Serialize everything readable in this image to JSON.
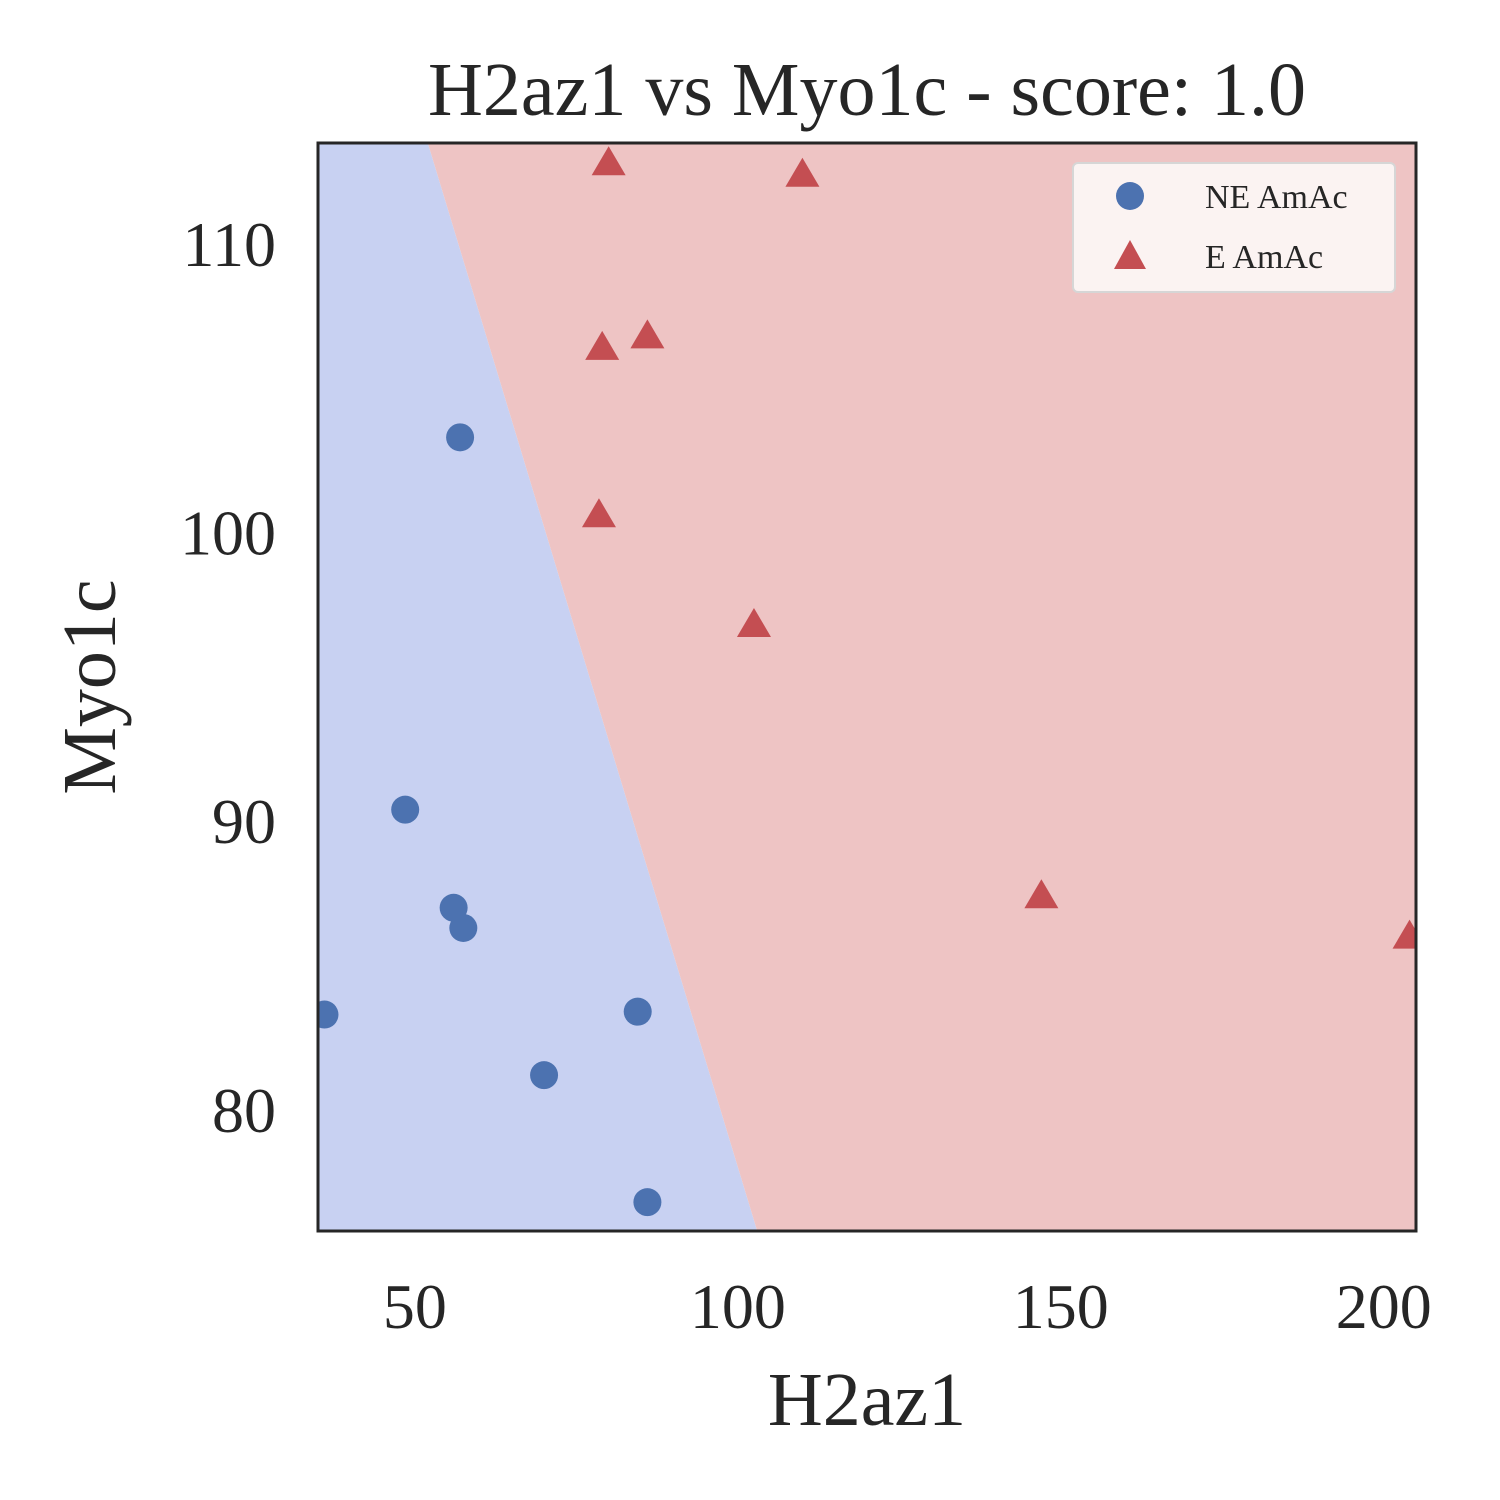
{
  "chart_data": {
    "type": "scatter",
    "title": "H2az1 vs Myo1c - score: 1.0",
    "xlabel": "H2az1",
    "ylabel": "Myo1c",
    "xlim": [
      35,
      205
    ],
    "ylim": [
      75.8,
      113.5
    ],
    "xticks": [
      50,
      100,
      150,
      200
    ],
    "yticks": [
      80,
      90,
      100,
      110
    ],
    "grid": false,
    "legend_position": "top-right",
    "decision_boundary": {
      "line": [
        [
          52,
          113.5
        ],
        [
          103,
          75.8
        ]
      ],
      "left_region_class": "NE AmAc",
      "right_region_class": "E AmAc",
      "left_color": "#c8d1f2",
      "right_color": "#eec4c4"
    },
    "series": [
      {
        "name": "NE AmAc",
        "marker": "circle",
        "color": "#4c72b0",
        "points": [
          {
            "x": 57,
            "y": 103.3
          },
          {
            "x": 48.5,
            "y": 90.4
          },
          {
            "x": 56,
            "y": 87.0
          },
          {
            "x": 57.5,
            "y": 86.3
          },
          {
            "x": 36,
            "y": 83.3
          },
          {
            "x": 84.5,
            "y": 83.4
          },
          {
            "x": 70,
            "y": 81.2
          },
          {
            "x": 86,
            "y": 76.8
          }
        ]
      },
      {
        "name": "E AmAc",
        "marker": "triangle",
        "color": "#c44e52",
        "points": [
          {
            "x": 80,
            "y": 112.8
          },
          {
            "x": 110,
            "y": 112.4
          },
          {
            "x": 79,
            "y": 106.4
          },
          {
            "x": 86,
            "y": 106.8
          },
          {
            "x": 78.5,
            "y": 100.6
          },
          {
            "x": 102.5,
            "y": 96.8
          },
          {
            "x": 147,
            "y": 87.4
          },
          {
            "x": 204,
            "y": 86.0
          }
        ]
      }
    ]
  }
}
